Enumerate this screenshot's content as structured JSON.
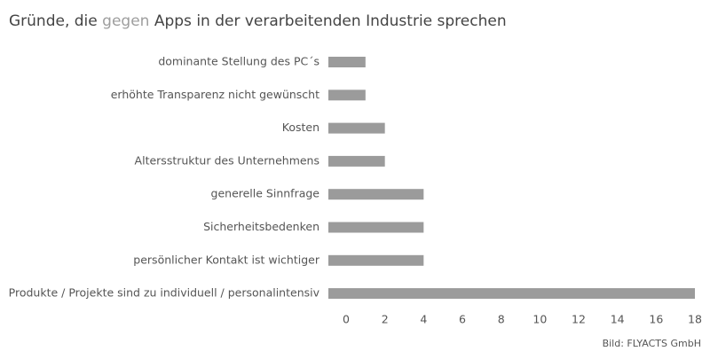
{
  "chart_data": {
    "type": "hbar",
    "title_parts": [
      {
        "text": "Gründe, die ",
        "color": "#444444"
      },
      {
        "text": "gegen",
        "color": "#9e9e9e"
      },
      {
        "text": " Apps in der verarbeitenden Industrie sprechen",
        "color": "#444444"
      }
    ],
    "categories": [
      "dominante Stellung des PC´s",
      "erhöhte Transparenz nicht gewünscht",
      "Kosten",
      "Altersstruktur des Unternehmens",
      "generelle Sinnfrage",
      "Sicherheitsbedenken",
      "persönlicher Kontakt ist wichtiger",
      "Produkte / Projekte sind zu individuell / personalintensiv"
    ],
    "values": [
      1,
      1,
      2,
      2,
      4,
      4,
      4,
      18
    ],
    "color": "#9b9b9b",
    "xlim": [
      0,
      18
    ],
    "xticks": [
      0,
      2,
      4,
      6,
      8,
      10,
      12,
      14,
      16,
      18
    ],
    "grid": false,
    "source": "Bild: FLYACTS GmbH"
  }
}
